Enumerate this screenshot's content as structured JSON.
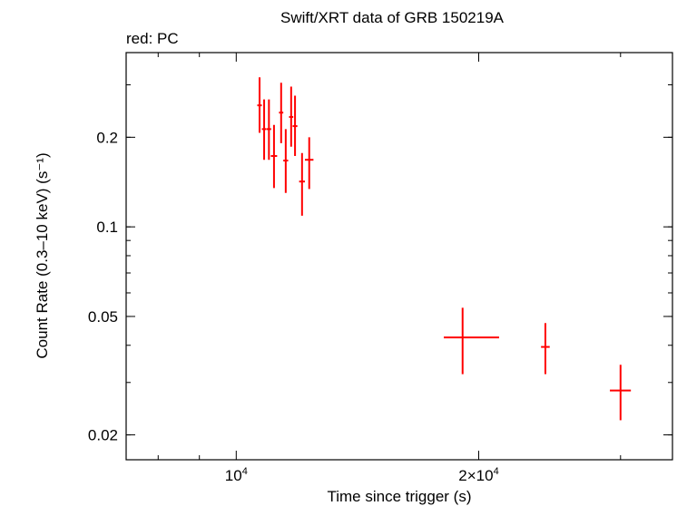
{
  "chart_data": {
    "type": "scatter",
    "title": "Swift/XRT data of GRB 150219A",
    "annotation": "red: PC",
    "xlabel": "Time since trigger (s)",
    "ylabel": "Count Rate (0.3–10 keV) (s⁻¹)",
    "x_scale": "log",
    "y_scale": "log",
    "xlim": [
      7300,
      34800
    ],
    "ylim": [
      0.0165,
      0.385
    ],
    "x_ticks": [
      {
        "value": 10000,
        "mantissa": "",
        "base": "10",
        "exp": "4"
      },
      {
        "value": 20000,
        "mantissa": "2×",
        "base": "10",
        "exp": "4"
      }
    ],
    "y_ticks": [
      {
        "value": 0.02,
        "label": "0.02"
      },
      {
        "value": 0.05,
        "label": "0.05"
      },
      {
        "value": 0.1,
        "label": "0.1"
      },
      {
        "value": 0.2,
        "label": "0.2"
      }
    ],
    "series": [
      {
        "name": "PC",
        "color": "#ff0000",
        "points": [
          {
            "x": 10690,
            "xerr": [
              70,
              70
            ],
            "y": 0.256,
            "yerr": [
              0.049,
              0.062
            ]
          },
          {
            "x": 10830,
            "xerr": [
              70,
              70
            ],
            "y": 0.213,
            "yerr": [
              0.045,
              0.055
            ]
          },
          {
            "x": 10980,
            "xerr": [
              70,
              70
            ],
            "y": 0.213,
            "yerr": [
              0.045,
              0.055
            ]
          },
          {
            "x": 11140,
            "xerr": [
              100,
              100
            ],
            "y": 0.173,
            "yerr": [
              0.038,
              0.047
            ]
          },
          {
            "x": 11370,
            "xerr": [
              70,
              70
            ],
            "y": 0.242,
            "yerr": [
              0.051,
              0.063
            ]
          },
          {
            "x": 11520,
            "xerr": [
              80,
              80
            ],
            "y": 0.167,
            "yerr": [
              0.037,
              0.046
            ]
          },
          {
            "x": 11700,
            "xerr": [
              70,
              70
            ],
            "y": 0.234,
            "yerr": [
              0.048,
              0.062
            ]
          },
          {
            "x": 11830,
            "xerr": [
              80,
              80
            ],
            "y": 0.218,
            "yerr": [
              0.045,
              0.058
            ]
          },
          {
            "x": 12070,
            "xerr": [
              100,
              100
            ],
            "y": 0.142,
            "yerr": [
              0.033,
              0.035
            ]
          },
          {
            "x": 12320,
            "xerr": [
              150,
              150
            ],
            "y": 0.168,
            "yerr": [
              0.034,
              0.032
            ]
          },
          {
            "x": 19100,
            "xerr": [
              1000,
              2100
            ],
            "y": 0.0425,
            "yerr": [
              0.0105,
              0.011
            ]
          },
          {
            "x": 24200,
            "xerr": [
              300,
              300
            ],
            "y": 0.0395,
            "yerr": [
              0.0075,
              0.008
            ]
          },
          {
            "x": 30000,
            "xerr": [
              900,
              900
            ],
            "y": 0.0282,
            "yerr": [
              0.0058,
              0.0062
            ]
          }
        ]
      }
    ]
  }
}
